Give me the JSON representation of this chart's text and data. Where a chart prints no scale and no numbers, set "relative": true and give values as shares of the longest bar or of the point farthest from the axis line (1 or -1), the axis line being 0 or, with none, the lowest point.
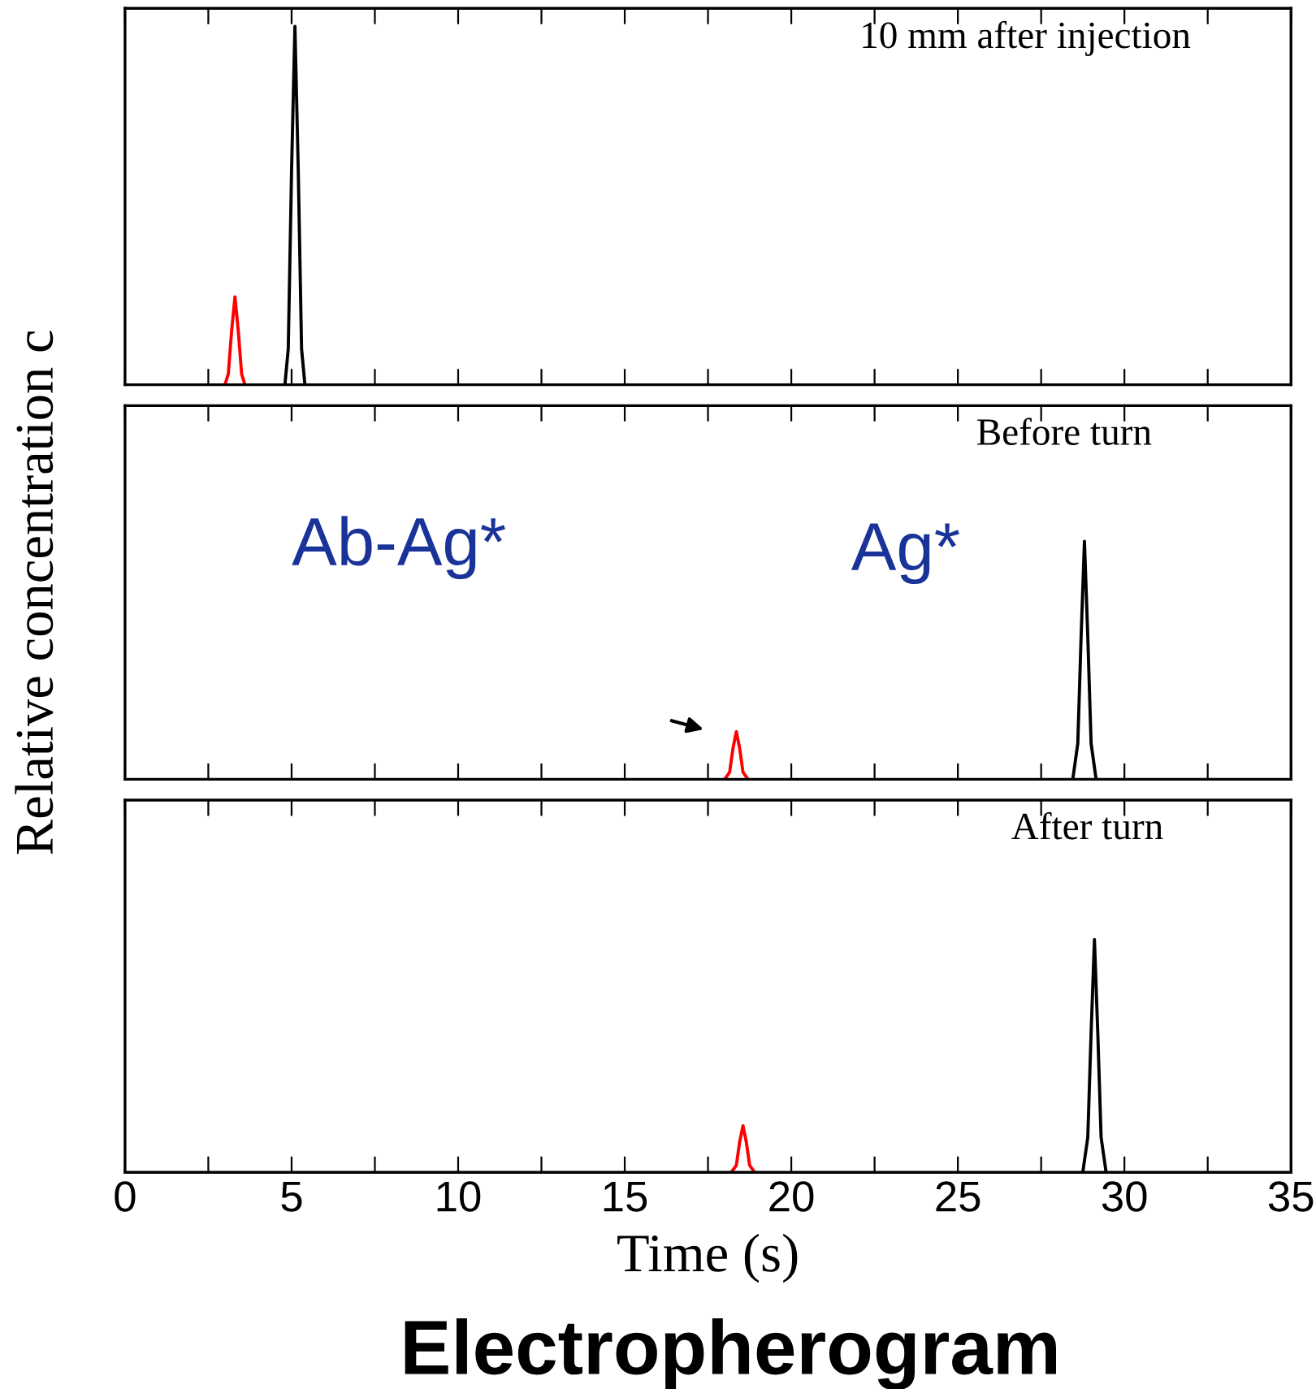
{
  "chart_data": [
    {
      "type": "line",
      "relative": true,
      "tick_labels": false,
      "xlim": [
        0,
        35
      ],
      "xticks": [
        0,
        {
          "value": 2.5,
          "label": null
        },
        5,
        {
          "value": 7.5,
          "label": null
        },
        10,
        {
          "value": 12.5,
          "label": null
        },
        15,
        {
          "value": 17.5,
          "label": null
        },
        20,
        {
          "value": 22.5,
          "label": null
        },
        25,
        {
          "value": 27.5,
          "label": null
        },
        30,
        {
          "value": 32.5,
          "label": null
        },
        35
      ],
      "annotations": [
        "10 mm after injection"
      ],
      "series": [
        {
          "color": "#ff0000",
          "x": [
            3.0,
            3.1,
            3.2,
            3.3,
            3.4,
            3.5,
            3.6
          ],
          "values": [
            0,
            0.03,
            0.15,
            0.245,
            0.15,
            0.03,
            0
          ]
        },
        {
          "color": "#000000",
          "x": [
            4.8,
            4.9,
            5.0,
            5.1,
            5.2,
            5.3,
            5.4
          ],
          "values": [
            0,
            0.1,
            0.6,
            1,
            0.6,
            0.1,
            0
          ]
        }
      ]
    },
    {
      "type": "line",
      "relative": true,
      "tick_labels": false,
      "xlim": [
        0,
        35
      ],
      "xticks": [
        0,
        {
          "value": 2.5,
          "label": null
        },
        5,
        {
          "value": 7.5,
          "label": null
        },
        10,
        {
          "value": 12.5,
          "label": null
        },
        15,
        {
          "value": 17.5,
          "label": null
        },
        20,
        {
          "value": 22.5,
          "label": null
        },
        25,
        {
          "value": 27.5,
          "label": null
        },
        30,
        {
          "value": 32.5,
          "label": null
        },
        35
      ],
      "ylabel": "Relative concentration c",
      "annotations": [
        "Before turn",
        {
          "text": "Ag*",
          "x": 28.8,
          "y": 1
        },
        "Ab-Ag*"
      ],
      "series": [
        {
          "color": "#ff0000",
          "x": [
            18.0,
            18.15,
            18.25,
            18.35,
            18.45,
            18.55,
            18.7
          ],
          "values": [
            0,
            0.03,
            0.13,
            0.2,
            0.13,
            0.03,
            0
          ]
        },
        {
          "color": "#000000",
          "x": [
            28.45,
            28.6,
            28.7,
            28.8,
            28.9,
            29.0,
            29.15
          ],
          "values": [
            0,
            0.15,
            0.6,
            1,
            0.6,
            0.15,
            0
          ]
        }
      ]
    },
    {
      "type": "line",
      "relative": true,
      "tick_labels": "x",
      "xlim": [
        0,
        35
      ],
      "xticks": [
        0,
        {
          "value": 2.5,
          "label": null
        },
        5,
        {
          "value": 7.5,
          "label": null
        },
        10,
        {
          "value": 12.5,
          "label": null
        },
        15,
        {
          "value": 17.5,
          "label": null
        },
        20,
        {
          "value": 22.5,
          "label": null
        },
        25,
        {
          "value": 27.5,
          "label": null
        },
        30,
        {
          "value": 32.5,
          "label": null
        },
        35
      ],
      "xlabel": "Time (s)",
      "title": "Electropherogram",
      "annotations": [
        "After turn"
      ],
      "series": [
        {
          "color": "#ff0000",
          "x": [
            18.2,
            18.35,
            18.45,
            18.55,
            18.65,
            18.75,
            18.9
          ],
          "values": [
            0,
            0.03,
            0.13,
            0.2,
            0.13,
            0.03,
            0
          ]
        },
        {
          "color": "#000000",
          "x": [
            28.75,
            28.9,
            29.0,
            29.1,
            29.2,
            29.3,
            29.45
          ],
          "values": [
            0,
            0.15,
            0.6,
            1,
            0.6,
            0.15,
            0
          ]
        }
      ]
    }
  ]
}
